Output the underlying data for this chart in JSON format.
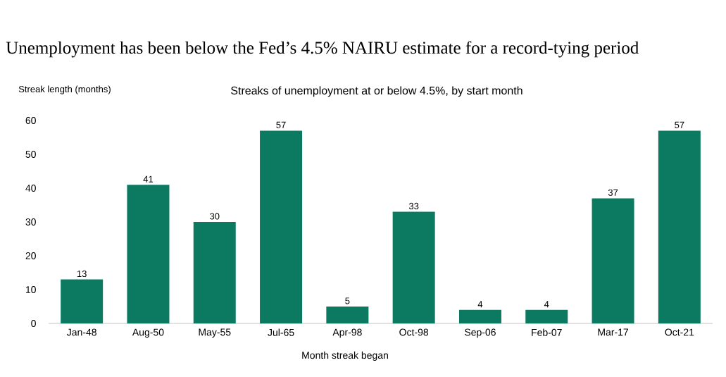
{
  "chart_data": {
    "type": "bar",
    "title": "Unemployment has been below the Fed’s 4.5% NAIRU estimate for a record-tying period",
    "subtitle": "Streaks of unemployment at or below 4.5%, by start month",
    "ylabel": "Streak length (months)",
    "xlabel": "Month streak began",
    "categories": [
      "Jan-48",
      "Aug-50",
      "May-55",
      "Jul-65",
      "Apr-98",
      "Oct-98",
      "Sep-06",
      "Feb-07",
      "Mar-17",
      "Oct-21"
    ],
    "values": [
      13,
      41,
      30,
      57,
      5,
      33,
      4,
      4,
      37,
      57
    ],
    "color": "#0b7a60",
    "ylim": [
      0,
      60
    ],
    "yticks": [
      0,
      10,
      20,
      30,
      40,
      50,
      60
    ],
    "data_labels": true
  }
}
